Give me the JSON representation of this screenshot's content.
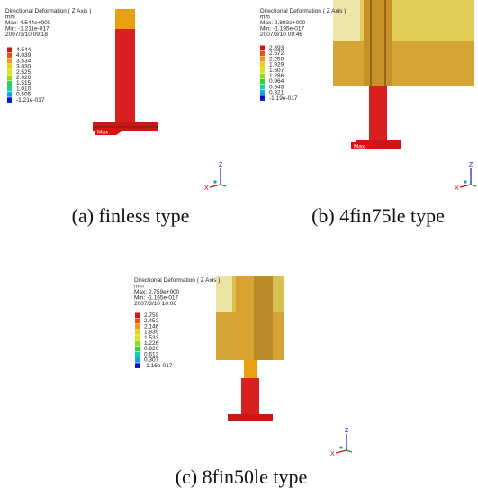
{
  "panels": [
    {
      "header": {
        "title": "Directional Deformation ( Z Axis )",
        "unit": "mm",
        "max": "Max: 4.544e+000",
        "min": "Min: -1.211e-017",
        "date": "2007/3/10 09:18"
      },
      "legend": [
        "4.544",
        "4.039",
        "3.534",
        "3.030",
        "2.525",
        "2.020",
        "1.515",
        "1.010",
        "0.505",
        "-1.21e-017"
      ],
      "max_marker": "Max",
      "triad": {
        "z": "Z",
        "x": "X"
      },
      "caption": "(a) finless type"
    },
    {
      "header": {
        "title": "Directional Deformation ( Z Axis )",
        "unit": "mm",
        "max": "Max: 2.893e+000",
        "min": "Min: -1.195e-017",
        "date": "2007/3/10 09:46"
      },
      "legend": [
        "2.893",
        "2.572",
        "2.250",
        "1.929",
        "1.607",
        "1.286",
        "0.964",
        "0.643",
        "0.321",
        "-1.19e-017"
      ],
      "max_marker": "Max",
      "triad": {
        "z": "Z",
        "x": "X"
      },
      "caption": "(b) 4fin75le type"
    },
    {
      "header": {
        "title": "Directional Deformation ( Z Axis )",
        "unit": "mm",
        "max": "Max: 2.759e+000",
        "min": "Min: -1.165e-017",
        "date": "2007/3/10 10:06"
      },
      "legend": [
        "2.759",
        "2.452",
        "2.146",
        "1.839",
        "1.533",
        "1.226",
        "0.920",
        "0.613",
        "0.307",
        "-1.16e-017"
      ],
      "triad": {
        "z": "Z",
        "x": "X"
      },
      "caption": "(c) 8fin50le type"
    }
  ]
}
